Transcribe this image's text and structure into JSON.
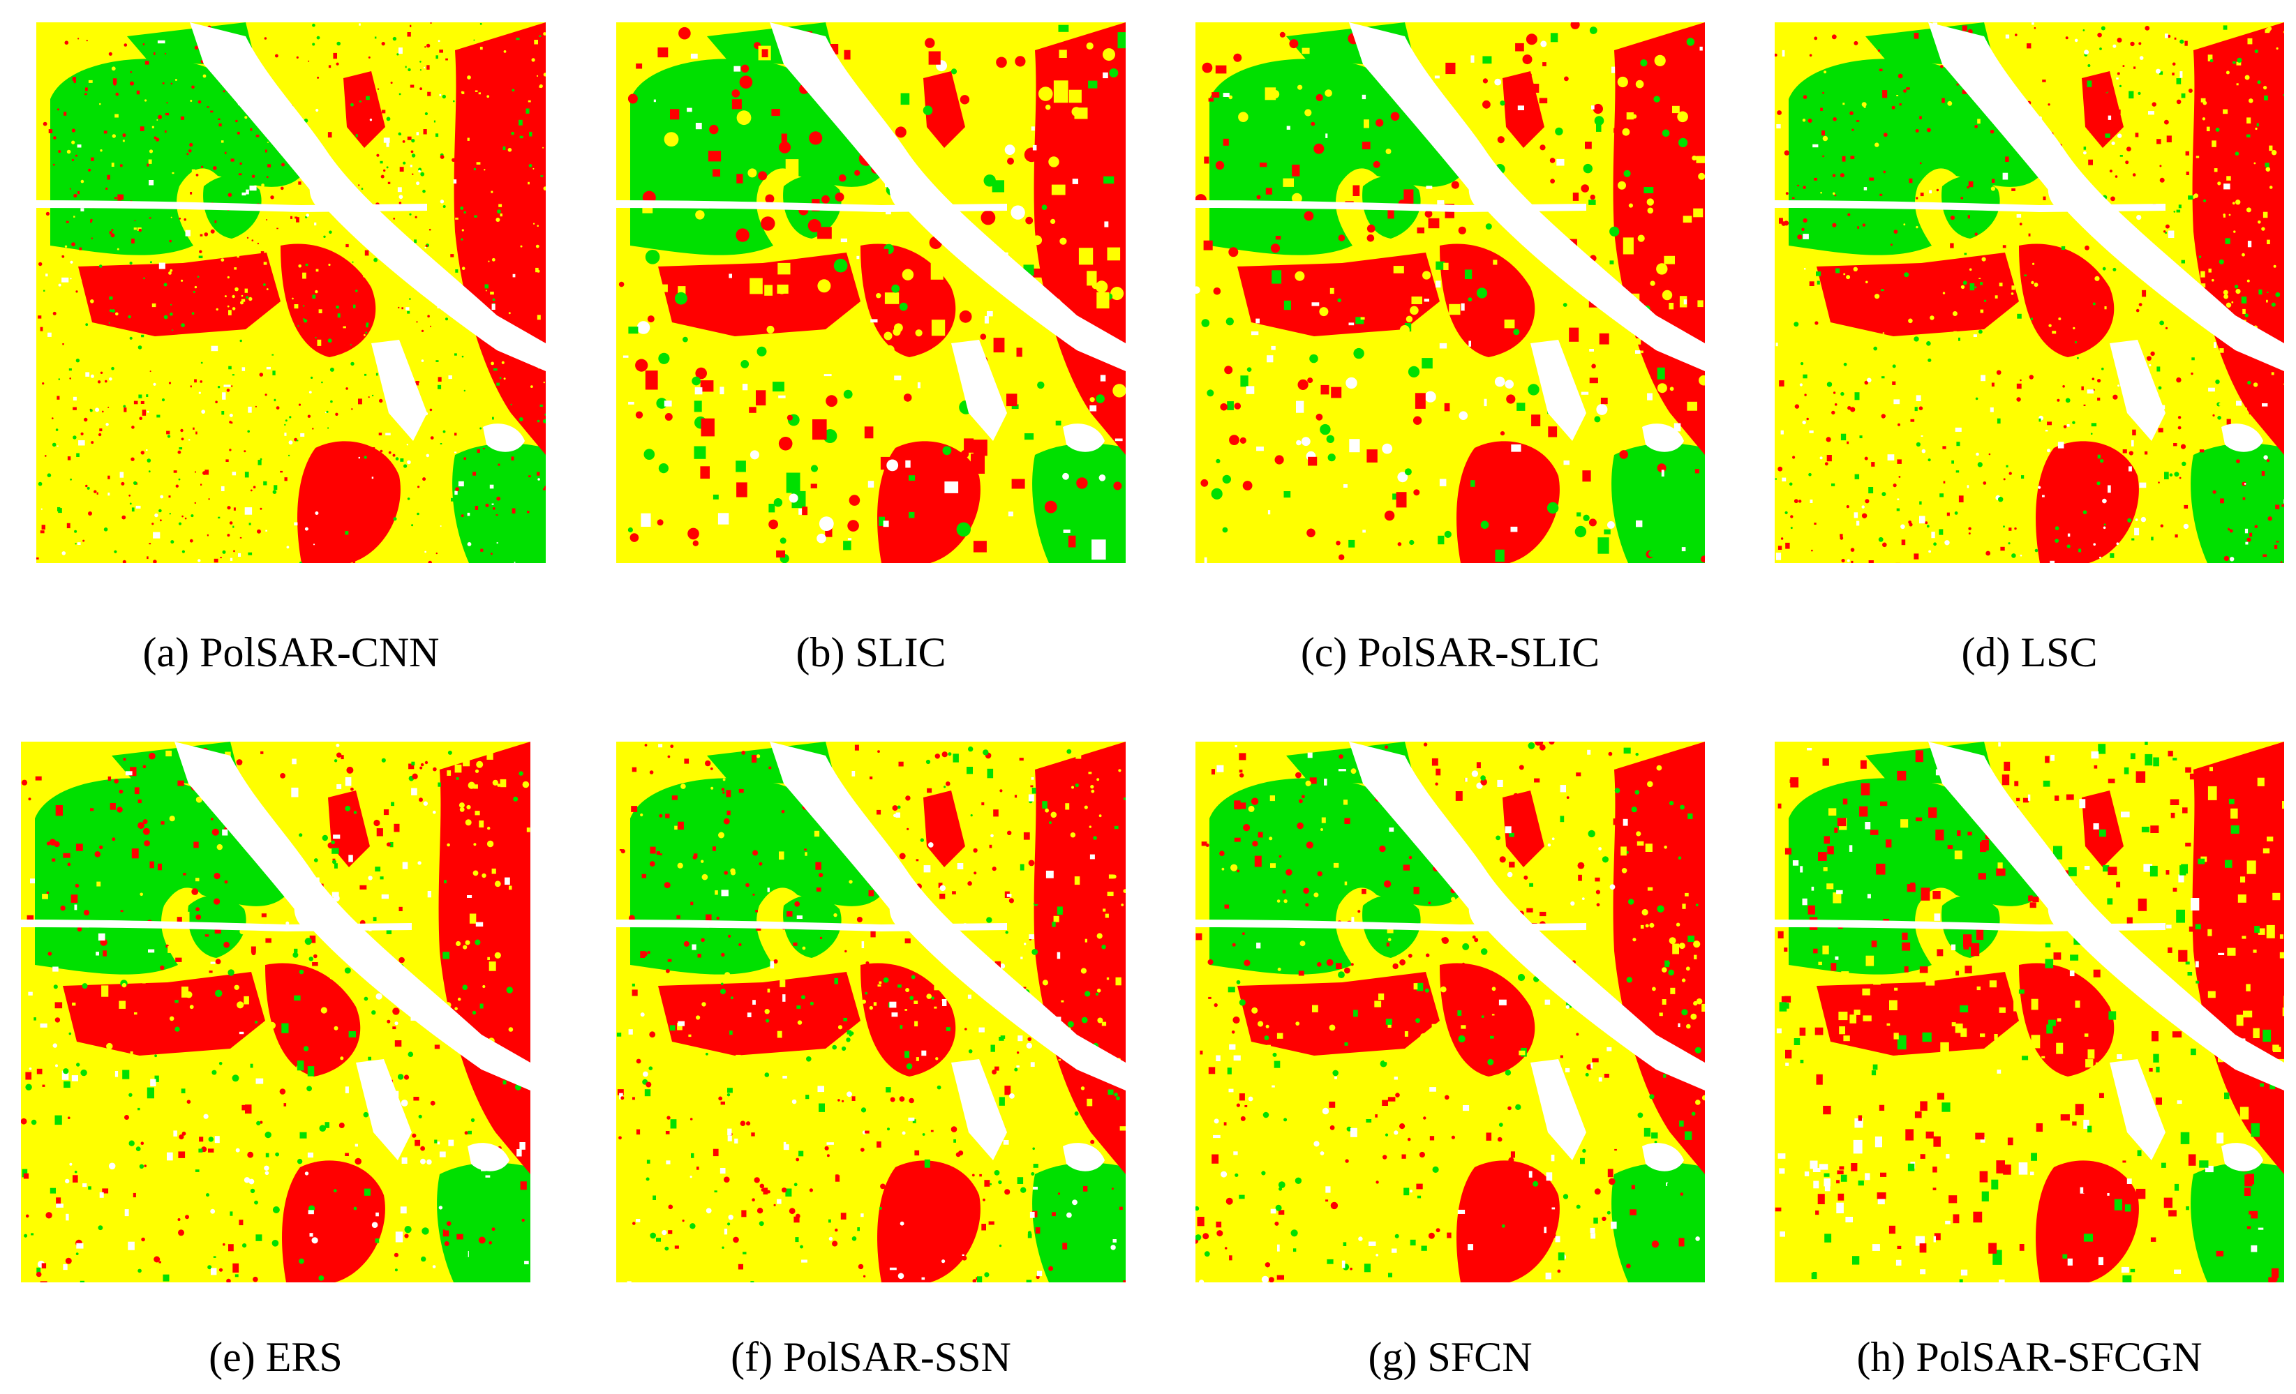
{
  "colors": {
    "class_yellow": "#ffff00",
    "class_green": "#00e000",
    "class_red": "#ff0000",
    "unlabeled_white": "#ffffff"
  },
  "panels": [
    {
      "id": "a",
      "caption": "(a) PolSAR-CNN"
    },
    {
      "id": "b",
      "caption": "(b) SLIC"
    },
    {
      "id": "c",
      "caption": "(c) PolSAR-SLIC"
    },
    {
      "id": "d",
      "caption": "(d) LSC"
    },
    {
      "id": "e",
      "caption": "(e) ERS"
    },
    {
      "id": "f",
      "caption": "(f) PolSAR-SSN"
    },
    {
      "id": "g",
      "caption": "(g) SFCN"
    },
    {
      "id": "h",
      "caption": "(h) PolSAR-SFCGN"
    }
  ]
}
